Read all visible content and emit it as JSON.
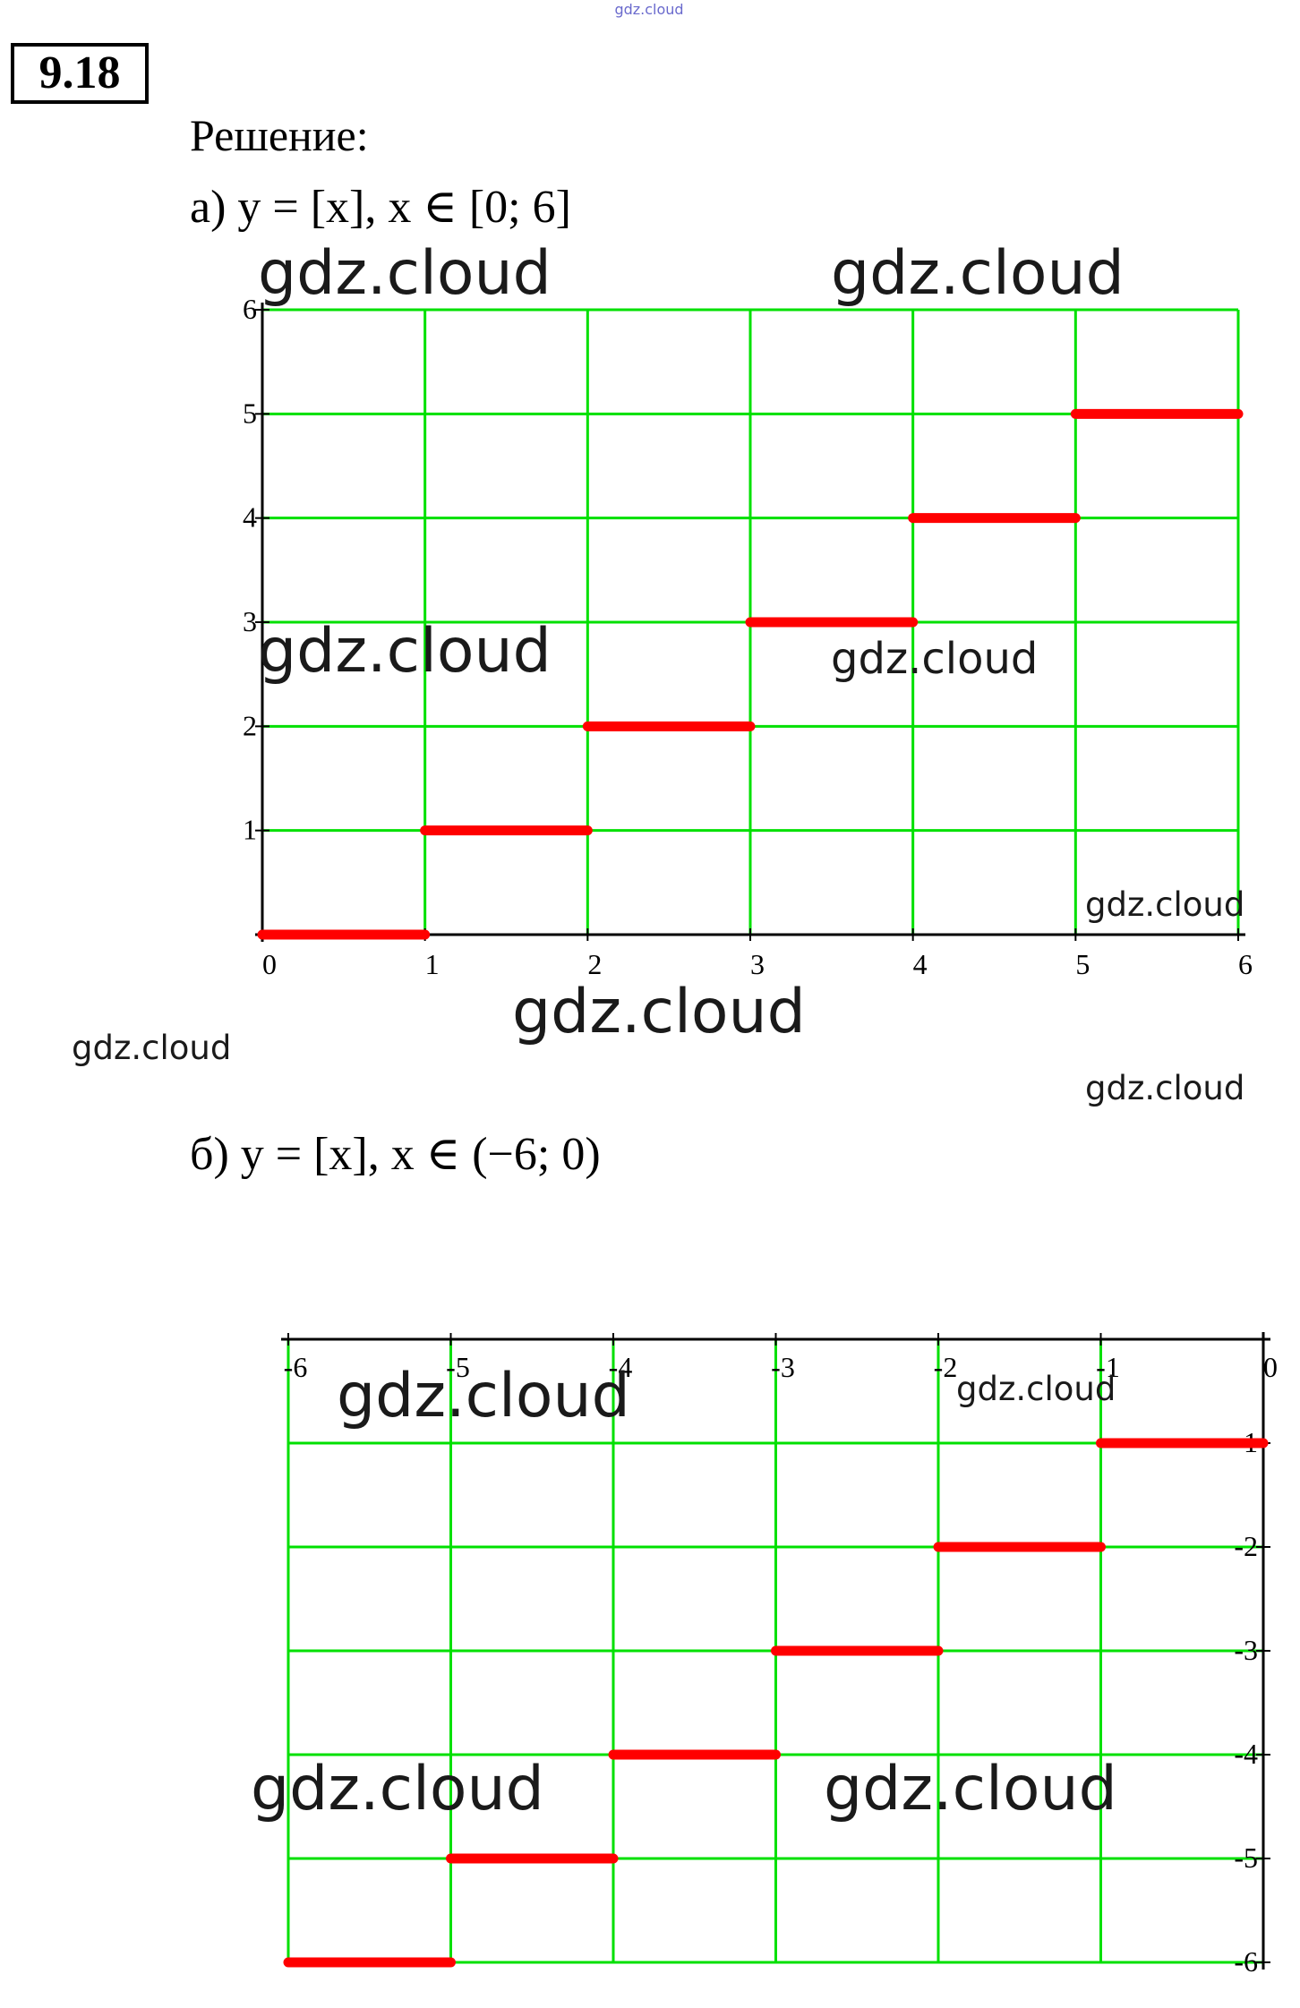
{
  "header": {
    "problem": "9.18",
    "solution": "Решение:"
  },
  "chart_data": [
    {
      "type": "step",
      "label": "а) y = [x], x ∈ [0; 6]",
      "x": [
        0,
        1,
        2,
        3,
        4,
        5
      ],
      "x_end": [
        1,
        2,
        3,
        4,
        5,
        6
      ],
      "values": [
        0,
        1,
        2,
        3,
        4,
        5
      ],
      "color": "#ff0000",
      "grid_color": "#00e000",
      "xlim": [
        0,
        6
      ],
      "ylim": [
        0,
        6
      ],
      "xticks": [
        0,
        1,
        2,
        3,
        4,
        5,
        6
      ],
      "yticks": [
        1,
        2,
        3,
        4,
        5,
        6
      ],
      "grid": true
    },
    {
      "type": "step",
      "label": "б) y = [x], x ∈ (−6; 0)",
      "x": [
        -6,
        -5,
        -4,
        -3,
        -2,
        -1
      ],
      "x_end": [
        -5,
        -4,
        -3,
        -2,
        -1,
        0
      ],
      "values": [
        -6,
        -5,
        -4,
        -3,
        -2,
        -1
      ],
      "color": "#ff0000",
      "grid_color": "#00e000",
      "xlim": [
        -6,
        0
      ],
      "ylim": [
        -6,
        0
      ],
      "xticks": [
        -6,
        -5,
        -4,
        -3,
        -2,
        -1,
        0
      ],
      "yticks": [
        -1,
        -2,
        -3,
        -4,
        -5,
        -6
      ],
      "grid": true
    }
  ],
  "watermarks": [
    "gdz.cloud",
    "gdz.cloud",
    "gdz.cloud",
    "gdz.cloud",
    "gdz.cloud",
    "gdz.cloud",
    "gdz.cloud",
    "gdz.cloud",
    "gdz.cloud",
    "gdz.cloud",
    "gdz.cloud",
    "gdz.cloud",
    "gdz.cloud"
  ]
}
